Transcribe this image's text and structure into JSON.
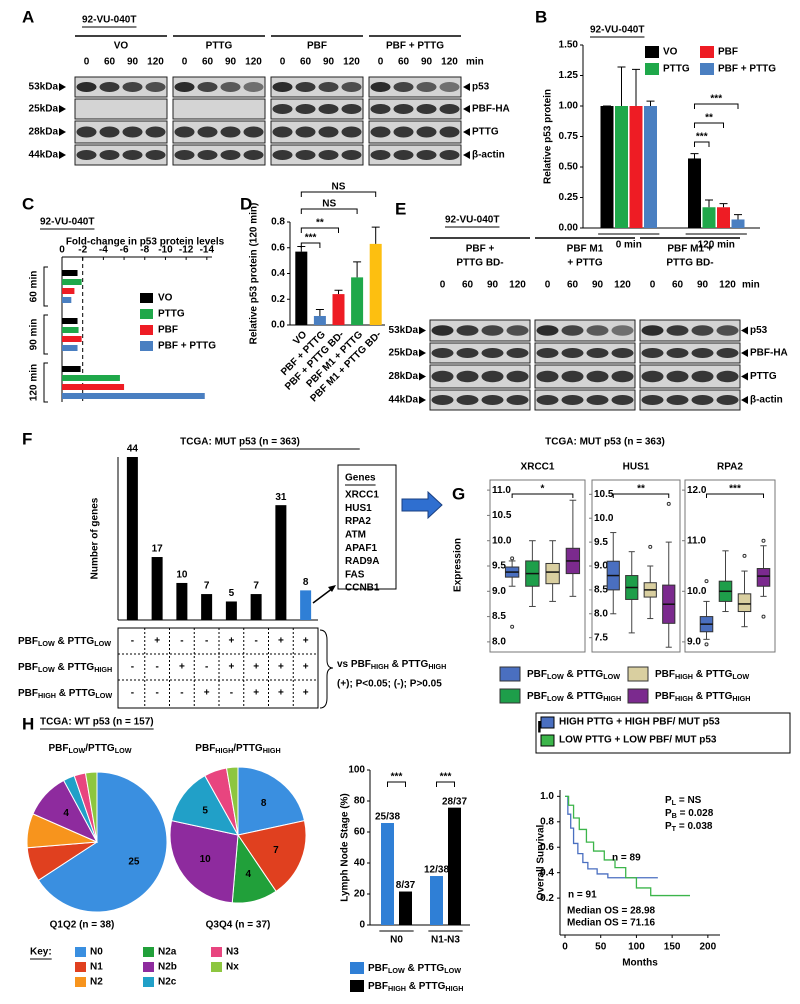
{
  "panel_labels": [
    "A",
    "B",
    "C",
    "D",
    "E",
    "F",
    "G",
    "H",
    "I"
  ],
  "blots": [
    {
      "cell_line": "92-VU-040T",
      "groups": [
        [
          "VO"
        ],
        [
          "PTTG"
        ],
        [
          "PBF"
        ],
        [
          "PBF + PTTG"
        ]
      ],
      "timepoints": [
        "0",
        "60",
        "90",
        "120"
      ],
      "unit": "min",
      "sizes": [
        "53kDa",
        "25kDa",
        "28kDa",
        "44kDa"
      ],
      "proteins": [
        "p53",
        "PBF-HA",
        "PTTG",
        "β-actin"
      ]
    },
    {
      "cell_line": "92-VU-040T",
      "groups": [
        [
          "PBF +",
          "PTTG BD-"
        ],
        [
          "PBF M1",
          "+ PTTG"
        ],
        [
          "PBF M1 +",
          "PTTG BD-"
        ]
      ],
      "timepoints": [
        "0",
        "60",
        "90",
        "120"
      ],
      "unit": "min",
      "sizes": [
        "53kDa",
        "25kDa",
        "28kDa",
        "44kDa"
      ],
      "proteins": [
        "p53",
        "PBF-HA",
        "PTTG",
        "β-actin"
      ]
    }
  ],
  "genes_box": {
    "title": "Genes",
    "items": [
      "XRCC1",
      "HUS1",
      "RPA2",
      "ATM",
      "APAF1",
      "RAD9A",
      "FAS",
      "CCNB1"
    ]
  },
  "panel_G": {
    "title": "TCGA: MUT p53 (n = 363)",
    "y_label": "Expression",
    "legend": [
      {
        "label": [
          "PBF",
          "LOW",
          " & PTTG",
          "LOW"
        ],
        "color": "#4a6fc0"
      },
      {
        "label": [
          "PBF",
          "LOW",
          " & PTTG",
          "HIGH"
        ],
        "color": "#1e9e4a"
      },
      {
        "label": [
          "PBF",
          "HIGH",
          " & PTTG",
          "LOW"
        ],
        "color": "#d9cfa0"
      },
      {
        "label": [
          "PBF",
          "HIGH",
          " & PTTG",
          "HIGH"
        ],
        "color": "#7b2a8e"
      }
    ]
  },
  "panel_H": {
    "title": "TCGA: WT p53 (n = 157)",
    "key_title": "Key:"
  },
  "chart_data": [
    {
      "type": "bar",
      "title": "92-VU-040T",
      "y_label": "Relative p53 protein",
      "categories": [
        "0 min",
        "120 min"
      ],
      "series": [
        {
          "name": "VO",
          "color": "#000000",
          "values": [
            1.0,
            0.57
          ],
          "errors": [
            0.0,
            0.04
          ]
        },
        {
          "name": "PTTG",
          "color": "#1fa84a",
          "values": [
            1.0,
            0.17
          ],
          "errors": [
            0.32,
            0.06
          ]
        },
        {
          "name": "PBF",
          "color": "#ee1c24",
          "values": [
            1.0,
            0.17
          ],
          "errors": [
            0.3,
            0.03
          ]
        },
        {
          "name": "PBF + PTTG",
          "color": "#4a7fc1",
          "values": [
            1.0,
            0.07
          ],
          "errors": [
            0.04,
            0.04
          ]
        }
      ],
      "ylim": [
        0,
        1.5
      ],
      "yticks": [
        {
          "value": 0,
          "label": "0.00"
        },
        0.25,
        {
          "value": 0.5,
          "label": "0.50"
        },
        0.75,
        {
          "value": 1,
          "label": "1.00"
        },
        1.25,
        {
          "value": 1.5,
          "label": "1.50"
        }
      ],
      "significance": [
        "***",
        "**",
        "***"
      ]
    },
    {
      "type": "hbar",
      "title": "92-VU-040T",
      "x_label": "Fold-change in p53 protein levels",
      "groups": [
        "60 min",
        "90 min",
        "120 min"
      ],
      "series": [
        {
          "name": "VO",
          "color": "#000000",
          "values": [
            -1.5,
            -1.5,
            -1.8
          ]
        },
        {
          "name": "PTTG",
          "color": "#1fa84a",
          "values": [
            -1.9,
            -1.6,
            -5.6
          ]
        },
        {
          "name": "PBF",
          "color": "#ee1c24",
          "values": [
            -1.2,
            -1.9,
            -6.0
          ]
        },
        {
          "name": "PBF + PTTG",
          "color": "#4a7fc1",
          "values": [
            -0.9,
            -1.5,
            -13.8
          ]
        }
      ],
      "xlim": [
        0,
        -14.5
      ],
      "xticks": [
        0,
        -2,
        -4,
        -6,
        -8,
        -10,
        -12,
        -14
      ],
      "threshold": -2
    },
    {
      "type": "bar",
      "y_label": "Relative p53 protein (120 min)",
      "categories": [
        "VO",
        "PBF + PTTG",
        "PBF + PTTG BD-",
        "PBF M1 + PTTG",
        "PBF M1 + PTTG BD-"
      ],
      "values": [
        0.57,
        0.07,
        0.24,
        0.37,
        0.63
      ],
      "errors": [
        0.04,
        0.05,
        0.03,
        0.12,
        0.13
      ],
      "colors": [
        "#000000",
        "#4a7fc1",
        "#ee1c24",
        "#1fa84a",
        "#fdbf10"
      ],
      "ylim": [
        0,
        0.8
      ],
      "yticks": [
        {
          "value": 0,
          "label": "0.0"
        },
        0.2,
        0.4,
        0.6,
        0.8
      ],
      "significance": [
        "***",
        "**",
        "NS",
        "NS"
      ]
    },
    {
      "type": "bar",
      "title": "TCGA: MUT p53 (n = 363)",
      "y_label": "Number of genes",
      "values": [
        44,
        17,
        10,
        7,
        5,
        7,
        31,
        8
      ],
      "colors": [
        "#000000",
        "#000000",
        "#000000",
        "#000000",
        "#000000",
        "#000000",
        "#000000",
        "#2f7fd6"
      ],
      "rows": [
        {
          "label": [
            "PBF",
            "LOW",
            " & PTTG",
            "LOW"
          ],
          "signs": [
            "-",
            "+",
            "-",
            "-",
            "+",
            "-",
            "+",
            "+"
          ]
        },
        {
          "label": [
            "PBF",
            "LOW",
            " & PTTG",
            "HIGH"
          ],
          "signs": [
            "-",
            "-",
            "+",
            "-",
            "+",
            "+",
            "+",
            "+"
          ]
        },
        {
          "label": [
            "PBF",
            "HIGH",
            " & PTTG",
            "LOW"
          ],
          "signs": [
            "-",
            "-",
            "-",
            "+",
            "-",
            "+",
            "+",
            "+"
          ]
        }
      ],
      "comparison": [
        "vs PBF",
        "HIGH",
        " & PTTG",
        "HIGH"
      ],
      "key": "(+); P<0.05; (-); P>0.05"
    },
    {
      "type": "box",
      "name": "XRCC1",
      "ylim": [
        7.8,
        11.2
      ],
      "yticks": [
        {
          "value": 8,
          "label": "8.0"
        },
        8.5,
        {
          "value": 9,
          "label": "9.0"
        },
        9.5,
        {
          "value": 10,
          "label": "10.0"
        },
        10.5,
        {
          "value": 11,
          "label": "11.0"
        }
      ],
      "boxes": [
        {
          "min": 9.1,
          "q1": 9.28,
          "median": 9.38,
          "q3": 9.48,
          "max": 9.6,
          "outliers": [
            8.3,
            9.65
          ]
        },
        {
          "min": 8.7,
          "q1": 9.1,
          "median": 9.35,
          "q3": 9.6,
          "max": 10.0,
          "outliers": []
        },
        {
          "min": 8.8,
          "q1": 9.15,
          "median": 9.38,
          "q3": 9.55,
          "max": 10.0,
          "outliers": []
        },
        {
          "min": 8.9,
          "q1": 9.35,
          "median": 9.6,
          "q3": 9.85,
          "max": 10.8,
          "outliers": []
        }
      ],
      "significance": "*"
    },
    {
      "type": "box",
      "name": "HUS1",
      "ylim": [
        7.2,
        10.8
      ],
      "yticks": [
        7.5,
        {
          "value": 8,
          "label": "8.0"
        },
        8.5,
        {
          "value": 9,
          "label": "9.0"
        },
        9.5,
        {
          "value": 10,
          "label": "10.0"
        },
        10.5
      ],
      "boxes": [
        {
          "min": 8.0,
          "q1": 8.5,
          "median": 8.8,
          "q3": 9.1,
          "max": 9.7,
          "outliers": []
        },
        {
          "min": 7.6,
          "q1": 8.3,
          "median": 8.55,
          "q3": 8.8,
          "max": 9.3,
          "outliers": []
        },
        {
          "min": 7.9,
          "q1": 8.35,
          "median": 8.5,
          "q3": 8.65,
          "max": 9.0,
          "outliers": [
            9.4
          ]
        },
        {
          "min": 7.3,
          "q1": 7.8,
          "median": 8.2,
          "q3": 8.6,
          "max": 9.5,
          "outliers": [
            10.3
          ]
        }
      ],
      "significance": "**"
    },
    {
      "type": "box",
      "name": "RPA2",
      "ylim": [
        8.8,
        12.2
      ],
      "yticks": [
        {
          "value": 9,
          "label": "9.0"
        },
        {
          "value": 10,
          "label": "10.0"
        },
        {
          "value": 11,
          "label": "11.0"
        },
        {
          "value": 12,
          "label": "12.0"
        }
      ],
      "boxes": [
        {
          "min": 9.05,
          "q1": 9.2,
          "median": 9.35,
          "q3": 9.5,
          "max": 9.8,
          "outliers": [
            8.95,
            10.2
          ]
        },
        {
          "min": 9.6,
          "q1": 9.8,
          "median": 10.0,
          "q3": 10.2,
          "max": 10.8,
          "outliers": []
        },
        {
          "min": 9.3,
          "q1": 9.6,
          "median": 9.75,
          "q3": 9.95,
          "max": 10.4,
          "outliers": [
            10.7
          ]
        },
        {
          "min": 9.9,
          "q1": 10.1,
          "median": 10.3,
          "q3": 10.45,
          "max": 10.9,
          "outliers": [
            9.5,
            11.0
          ]
        }
      ],
      "significance": "***"
    },
    {
      "type": "pie",
      "title": [
        "PBF",
        "LOW",
        "/PTTG",
        "LOW"
      ],
      "caption": "Q1Q2 (n = 38)",
      "categories": [
        "N0",
        "N1",
        "N2",
        "N2a",
        "N2b",
        "N2c",
        "N3",
        "Nx"
      ],
      "colors": [
        "#3a8fe0",
        "#e0401f",
        "#f7941d",
        "#21a03a",
        "#8e2b9e",
        "#21a0c8",
        "#e8457f",
        "#8dc63f"
      ],
      "values": [
        25,
        3,
        3,
        0,
        4,
        1,
        1,
        1
      ]
    },
    {
      "type": "pie",
      "title": [
        "PBF",
        "HIGH",
        "/PTTG",
        "HIGH"
      ],
      "caption": "Q3Q4 (n = 37)",
      "categories": [
        "N0",
        "N1",
        "N2",
        "N2a",
        "N2b",
        "N2c",
        "N3",
        "Nx"
      ],
      "colors": [
        "#3a8fe0",
        "#e0401f",
        "#f7941d",
        "#21a03a",
        "#8e2b9e",
        "#21a0c8",
        "#e8457f",
        "#8dc63f"
      ],
      "values": [
        8,
        7,
        0,
        4,
        10,
        5,
        2,
        1
      ]
    },
    {
      "type": "bar",
      "y_label": "Lymph Node Stage (%)",
      "categories": [
        "N0",
        "N1-N3"
      ],
      "series": [
        {
          "name": [
            "PBF",
            "LOW",
            " & PTTG",
            "LOW"
          ],
          "color": "#2f7fd6",
          "values": [
            65.8,
            31.6
          ],
          "value_labels": [
            "25/38",
            "12/38"
          ]
        },
        {
          "name": [
            "PBF",
            "HIGH",
            " & PTTG",
            "HIGH"
          ],
          "color": "#000000",
          "values": [
            21.6,
            75.7
          ],
          "value_labels": [
            "8/37",
            "28/37"
          ]
        }
      ],
      "ylim": [
        0,
        100
      ],
      "yticks": [
        0,
        20,
        40,
        60,
        80,
        100
      ],
      "significance": [
        "***",
        "***"
      ]
    },
    {
      "type": "line",
      "y_label": "Overall Survival",
      "x_label": "Months",
      "series": [
        {
          "name": "HIGH PTTG + HIGH PBF/ MUT p53",
          "color": "#4a6fc0",
          "x": [
            0,
            4,
            4,
            8,
            8,
            12,
            12,
            18,
            18,
            25,
            25,
            32,
            32,
            45,
            45,
            60,
            60,
            130
          ],
          "values": [
            1,
            1,
            0.86,
            0.86,
            0.75,
            0.75,
            0.63,
            0.63,
            0.55,
            0.55,
            0.48,
            0.48,
            0.43,
            0.43,
            0.39,
            0.39,
            0.36,
            0.36
          ]
        },
        {
          "name": "LOW PTTG + LOW PBF/ MUT p53",
          "color": "#3cb54a",
          "x": [
            0,
            5,
            5,
            12,
            12,
            20,
            20,
            30,
            30,
            40,
            40,
            55,
            55,
            70,
            70,
            85,
            85,
            100,
            100,
            120,
            120,
            175
          ],
          "values": [
            1,
            1,
            0.93,
            0.93,
            0.83,
            0.83,
            0.74,
            0.74,
            0.64,
            0.64,
            0.57,
            0.57,
            0.5,
            0.5,
            0.44,
            0.44,
            0.36,
            0.36,
            0.28,
            0.28,
            0.22,
            0.22
          ]
        }
      ],
      "xlim": [
        -7,
        217
      ],
      "xticks": [
        0,
        50,
        100,
        150,
        200
      ],
      "ylim": [
        -0.09,
        1.05
      ],
      "yticks": [
        0.2,
        0.4,
        0.6,
        0.8,
        {
          "value": 1,
          "label": "1.0"
        }
      ],
      "stats": [
        [
          "P",
          "L",
          " = NS"
        ],
        [
          "P",
          "B",
          " = 0.028"
        ],
        [
          "P",
          "T",
          " = 0.038"
        ]
      ],
      "n_labels": [
        "n = 89",
        "n = 91"
      ],
      "medians": [
        "Median OS = 28.98",
        "Median OS = 71.16"
      ]
    }
  ]
}
